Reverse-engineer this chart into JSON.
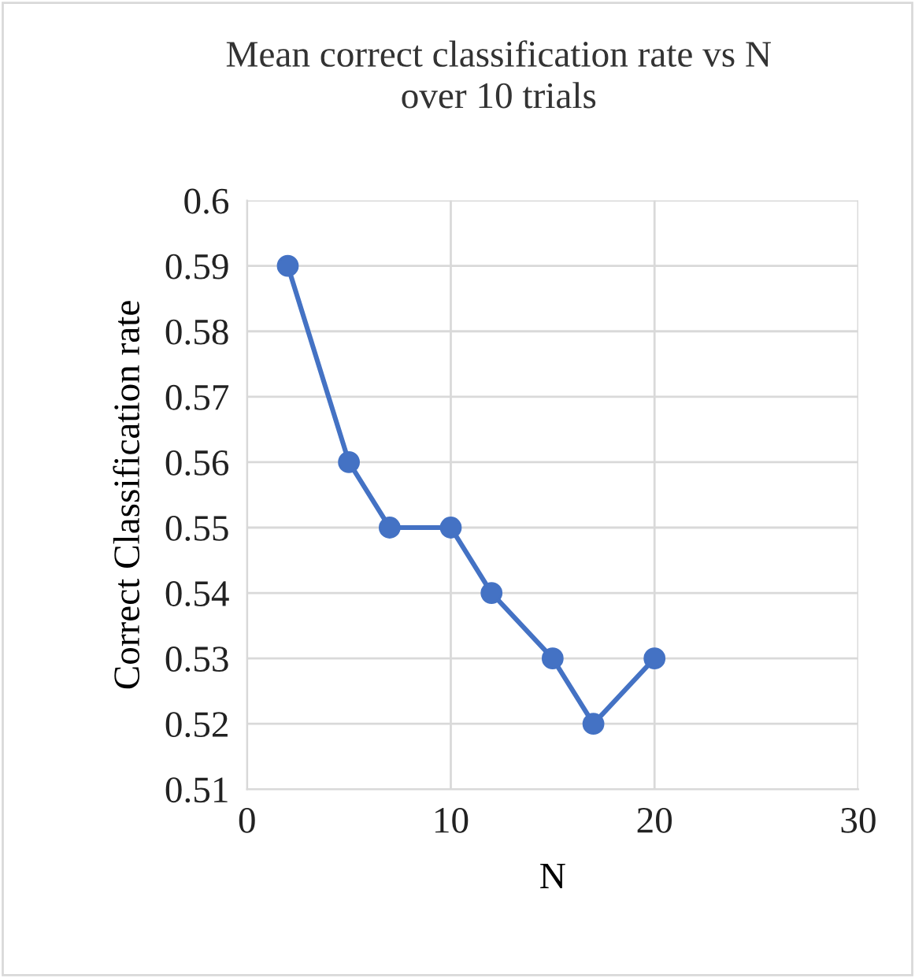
{
  "chart_data": {
    "type": "line",
    "title": "Mean correct classification rate vs N\nover 10 trials",
    "xlabel": "N",
    "ylabel": "Correct Classification rate",
    "x": [
      2,
      5,
      7,
      10,
      12,
      15,
      17,
      20
    ],
    "series": [
      {
        "color": "#4472c4",
        "values": [
          0.59,
          0.56,
          0.55,
          0.55,
          0.54,
          0.53,
          0.52,
          0.53
        ]
      }
    ],
    "xlim": [
      0,
      30
    ],
    "xticks": [
      0,
      10,
      20,
      30
    ],
    "ylim": [
      0.51,
      0.6
    ],
    "yticks": [
      0.51,
      0.52,
      0.53,
      0.54,
      0.55,
      0.56,
      0.57,
      0.58,
      0.59,
      0.6
    ],
    "grid": true,
    "marker": "circle",
    "line_style": "solid",
    "legend": false
  }
}
